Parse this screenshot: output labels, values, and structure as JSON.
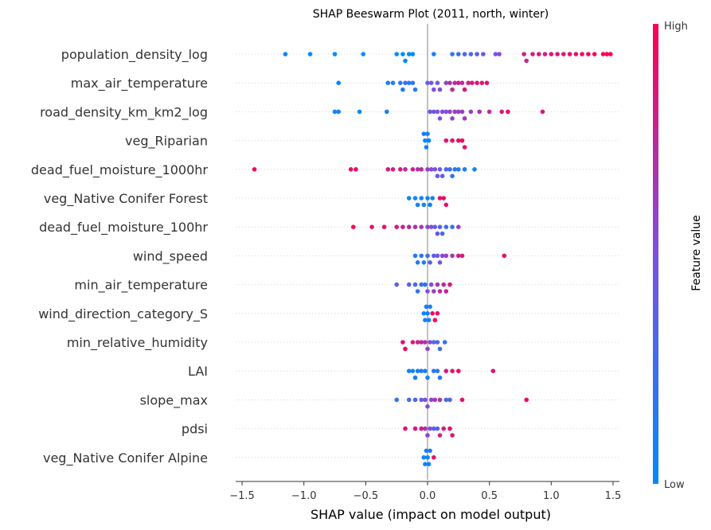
{
  "chart_data": {
    "type": "scatter",
    "subtype": "shap-beeswarm",
    "title": "SHAP Beeswarm Plot (2011, north, winter)",
    "xlabel": "SHAP value (impact on model output)",
    "xlim": [
      -1.6,
      1.6
    ],
    "xticks": [
      -1.5,
      -1.0,
      -0.5,
      0.0,
      0.5,
      1.0,
      1.5
    ],
    "xtick_labels": [
      "−1.5",
      "−1.0",
      "−0.5",
      "0.0",
      "0.5",
      "1.0",
      "1.5"
    ],
    "colorbar": {
      "label": "Feature value",
      "high": "High",
      "low": "Low",
      "low_color": "#008bfb",
      "high_color": "#ff0052"
    },
    "features": [
      {
        "name": "population_density_log",
        "points": [
          [
            -1.15,
            0.05
          ],
          [
            -0.95,
            0.0
          ],
          [
            -0.75,
            0.0
          ],
          [
            -0.52,
            0.0
          ],
          [
            -0.25,
            0.0
          ],
          [
            -0.2,
            0.0
          ],
          [
            -0.18,
            0.0
          ],
          [
            -0.15,
            0.0
          ],
          [
            -0.12,
            0.0
          ],
          [
            0.05,
            0.1
          ],
          [
            0.2,
            0.2
          ],
          [
            0.25,
            0.25
          ],
          [
            0.3,
            0.3
          ],
          [
            0.35,
            0.32
          ],
          [
            0.4,
            0.35
          ],
          [
            0.45,
            0.4
          ],
          [
            0.55,
            0.5
          ],
          [
            0.58,
            0.55
          ],
          [
            0.78,
            0.8
          ],
          [
            0.8,
            0.75
          ],
          [
            0.85,
            0.82
          ],
          [
            0.9,
            0.85
          ],
          [
            0.95,
            0.8
          ],
          [
            1.0,
            0.9
          ],
          [
            1.05,
            0.88
          ],
          [
            1.1,
            0.85
          ],
          [
            1.15,
            0.9
          ],
          [
            1.2,
            0.9
          ],
          [
            1.25,
            0.95
          ],
          [
            1.3,
            0.95
          ],
          [
            1.45,
            1.0
          ],
          [
            1.48,
            1.0
          ],
          [
            1.42,
            0.98
          ],
          [
            1.35,
            0.95
          ]
        ]
      },
      {
        "name": "max_air_temperature",
        "points": [
          [
            -0.72,
            0.05
          ],
          [
            -0.32,
            0.1
          ],
          [
            -0.28,
            0.15
          ],
          [
            -0.22,
            0.2
          ],
          [
            -0.2,
            0.12
          ],
          [
            -0.18,
            0.25
          ],
          [
            -0.15,
            0.1
          ],
          [
            -0.12,
            0.2
          ],
          [
            -0.1,
            0.15
          ],
          [
            0.0,
            0.4
          ],
          [
            0.03,
            0.45
          ],
          [
            0.05,
            0.5
          ],
          [
            0.08,
            0.45
          ],
          [
            0.1,
            0.55
          ],
          [
            0.15,
            0.6
          ],
          [
            0.18,
            0.7
          ],
          [
            0.2,
            0.75
          ],
          [
            0.22,
            0.7
          ],
          [
            0.25,
            0.8
          ],
          [
            0.28,
            0.75
          ],
          [
            0.3,
            0.85
          ],
          [
            0.33,
            0.8
          ],
          [
            0.36,
            0.85
          ],
          [
            0.4,
            0.9
          ],
          [
            0.44,
            0.85
          ],
          [
            0.48,
            0.9
          ]
        ]
      },
      {
        "name": "road_density_km_km2_log",
        "points": [
          [
            -0.75,
            0.05
          ],
          [
            -0.72,
            0.08
          ],
          [
            -0.55,
            0.0
          ],
          [
            -0.33,
            0.1
          ],
          [
            0.02,
            0.4
          ],
          [
            0.05,
            0.45
          ],
          [
            0.08,
            0.5
          ],
          [
            0.1,
            0.48
          ],
          [
            0.12,
            0.55
          ],
          [
            0.15,
            0.5
          ],
          [
            0.18,
            0.58
          ],
          [
            0.2,
            0.55
          ],
          [
            0.22,
            0.6
          ],
          [
            0.25,
            0.62
          ],
          [
            0.28,
            0.6
          ],
          [
            0.3,
            0.65
          ],
          [
            0.35,
            0.6
          ],
          [
            0.42,
            0.7
          ],
          [
            0.5,
            0.75
          ],
          [
            0.6,
            0.85
          ],
          [
            0.65,
            0.9
          ],
          [
            0.93,
            0.85
          ]
        ]
      },
      {
        "name": "veg_Riparian",
        "points": [
          [
            -0.02,
            0.05
          ],
          [
            -0.01,
            0.08
          ],
          [
            0.0,
            0.1
          ],
          [
            0.01,
            0.05
          ],
          [
            -0.03,
            0.1
          ],
          [
            0.15,
            0.9
          ],
          [
            0.2,
            0.95
          ],
          [
            0.25,
            0.9
          ],
          [
            0.28,
            0.95
          ],
          [
            0.3,
            0.92
          ]
        ]
      },
      {
        "name": "dead_fuel_moisture_1000hr",
        "points": [
          [
            -1.4,
            0.95
          ],
          [
            -0.62,
            0.9
          ],
          [
            -0.58,
            0.95
          ],
          [
            -0.32,
            0.85
          ],
          [
            -0.28,
            0.8
          ],
          [
            -0.22,
            0.85
          ],
          [
            -0.18,
            0.75
          ],
          [
            -0.12,
            0.8
          ],
          [
            -0.08,
            0.7
          ],
          [
            -0.05,
            0.75
          ],
          [
            0.0,
            0.6
          ],
          [
            0.03,
            0.55
          ],
          [
            0.06,
            0.5
          ],
          [
            0.08,
            0.45
          ],
          [
            0.1,
            0.4
          ],
          [
            0.12,
            0.35
          ],
          [
            0.15,
            0.3
          ],
          [
            0.18,
            0.25
          ],
          [
            0.2,
            0.2
          ],
          [
            0.22,
            0.15
          ],
          [
            0.25,
            0.12
          ],
          [
            0.3,
            0.1
          ],
          [
            0.38,
            0.08
          ]
        ]
      },
      {
        "name": "veg_Native Conifer Forest",
        "points": [
          [
            -0.15,
            0.05
          ],
          [
            -0.1,
            0.08
          ],
          [
            -0.08,
            0.1
          ],
          [
            -0.05,
            0.05
          ],
          [
            -0.03,
            0.1
          ],
          [
            0.0,
            0.08
          ],
          [
            0.02,
            0.05
          ],
          [
            0.04,
            0.1
          ],
          [
            0.1,
            0.9
          ],
          [
            0.13,
            0.95
          ],
          [
            0.15,
            0.9
          ]
        ]
      },
      {
        "name": "dead_fuel_moisture_100hr",
        "points": [
          [
            -0.6,
            0.95
          ],
          [
            -0.45,
            0.9
          ],
          [
            -0.35,
            0.92
          ],
          [
            -0.25,
            0.85
          ],
          [
            -0.2,
            0.8
          ],
          [
            -0.15,
            0.75
          ],
          [
            -0.1,
            0.7
          ],
          [
            -0.05,
            0.65
          ],
          [
            0.0,
            0.55
          ],
          [
            0.03,
            0.5
          ],
          [
            0.06,
            0.45
          ],
          [
            0.08,
            0.4
          ],
          [
            0.1,
            0.35
          ],
          [
            0.12,
            0.3
          ],
          [
            0.15,
            0.25
          ],
          [
            0.2,
            0.2
          ],
          [
            0.25,
            0.6
          ]
        ]
      },
      {
        "name": "wind_speed",
        "points": [
          [
            -0.1,
            0.1
          ],
          [
            -0.08,
            0.15
          ],
          [
            -0.05,
            0.2
          ],
          [
            -0.03,
            0.1
          ],
          [
            0.0,
            0.3
          ],
          [
            0.02,
            0.35
          ],
          [
            0.05,
            0.4
          ],
          [
            0.08,
            0.45
          ],
          [
            0.1,
            0.5
          ],
          [
            0.12,
            0.55
          ],
          [
            0.15,
            0.6
          ],
          [
            0.2,
            0.7
          ],
          [
            0.25,
            0.8
          ],
          [
            0.28,
            0.85
          ],
          [
            0.62,
            0.9
          ]
        ]
      },
      {
        "name": "min_air_temperature",
        "points": [
          [
            -0.25,
            0.4
          ],
          [
            -0.15,
            0.35
          ],
          [
            -0.1,
            0.3
          ],
          [
            -0.08,
            0.2
          ],
          [
            -0.05,
            0.25
          ],
          [
            -0.02,
            0.15
          ],
          [
            0.0,
            0.5
          ],
          [
            0.03,
            0.55
          ],
          [
            0.05,
            0.6
          ],
          [
            0.08,
            0.65
          ],
          [
            0.1,
            0.7
          ],
          [
            0.13,
            0.75
          ],
          [
            0.15,
            0.8
          ],
          [
            0.18,
            0.85
          ]
        ]
      },
      {
        "name": "wind_direction_category_S",
        "points": [
          [
            -0.03,
            0.05
          ],
          [
            -0.02,
            0.08
          ],
          [
            -0.01,
            0.1
          ],
          [
            0.0,
            0.05
          ],
          [
            0.01,
            0.08
          ],
          [
            0.02,
            0.1
          ],
          [
            0.04,
            0.9
          ],
          [
            0.06,
            0.95
          ],
          [
            0.08,
            0.9
          ]
        ]
      },
      {
        "name": "min_relative_humidity",
        "points": [
          [
            -0.2,
            0.9
          ],
          [
            -0.18,
            0.95
          ],
          [
            -0.12,
            0.85
          ],
          [
            -0.08,
            0.8
          ],
          [
            -0.05,
            0.75
          ],
          [
            -0.02,
            0.7
          ],
          [
            0.0,
            0.6
          ],
          [
            0.02,
            0.5
          ],
          [
            0.05,
            0.4
          ],
          [
            0.08,
            0.3
          ],
          [
            0.1,
            0.25
          ],
          [
            0.14,
            0.2
          ]
        ]
      },
      {
        "name": "LAI",
        "points": [
          [
            -0.15,
            0.1
          ],
          [
            -0.12,
            0.05
          ],
          [
            -0.1,
            0.15
          ],
          [
            -0.08,
            0.1
          ],
          [
            -0.05,
            0.12
          ],
          [
            -0.02,
            0.1
          ],
          [
            0.0,
            0.08
          ],
          [
            0.05,
            0.15
          ],
          [
            0.08,
            0.2
          ],
          [
            0.1,
            0.15
          ],
          [
            0.15,
            0.85
          ],
          [
            0.2,
            0.9
          ],
          [
            0.25,
            0.95
          ],
          [
            0.53,
            0.9
          ]
        ]
      },
      {
        "name": "slope_max",
        "points": [
          [
            -0.25,
            0.2
          ],
          [
            -0.15,
            0.25
          ],
          [
            -0.1,
            0.3
          ],
          [
            -0.05,
            0.4
          ],
          [
            -0.02,
            0.5
          ],
          [
            0.0,
            0.55
          ],
          [
            0.03,
            0.6
          ],
          [
            0.06,
            0.65
          ],
          [
            0.1,
            0.7
          ],
          [
            0.15,
            0.3
          ],
          [
            0.18,
            0.35
          ],
          [
            0.28,
            0.9
          ],
          [
            0.8,
            0.95
          ]
        ]
      },
      {
        "name": "pdsi",
        "points": [
          [
            -0.18,
            0.9
          ],
          [
            -0.1,
            0.85
          ],
          [
            -0.05,
            0.8
          ],
          [
            -0.02,
            0.7
          ],
          [
            0.0,
            0.6
          ],
          [
            0.02,
            0.5
          ],
          [
            0.05,
            0.4
          ],
          [
            0.08,
            0.35
          ],
          [
            0.1,
            0.8
          ],
          [
            0.13,
            0.85
          ],
          [
            0.18,
            0.9
          ],
          [
            0.2,
            0.85
          ]
        ]
      },
      {
        "name": "veg_Native Conifer Alpine",
        "points": [
          [
            -0.03,
            0.05
          ],
          [
            -0.02,
            0.08
          ],
          [
            -0.01,
            0.1
          ],
          [
            0.0,
            0.05
          ],
          [
            0.01,
            0.08
          ],
          [
            0.02,
            0.1
          ],
          [
            0.05,
            0.9
          ]
        ]
      }
    ]
  }
}
